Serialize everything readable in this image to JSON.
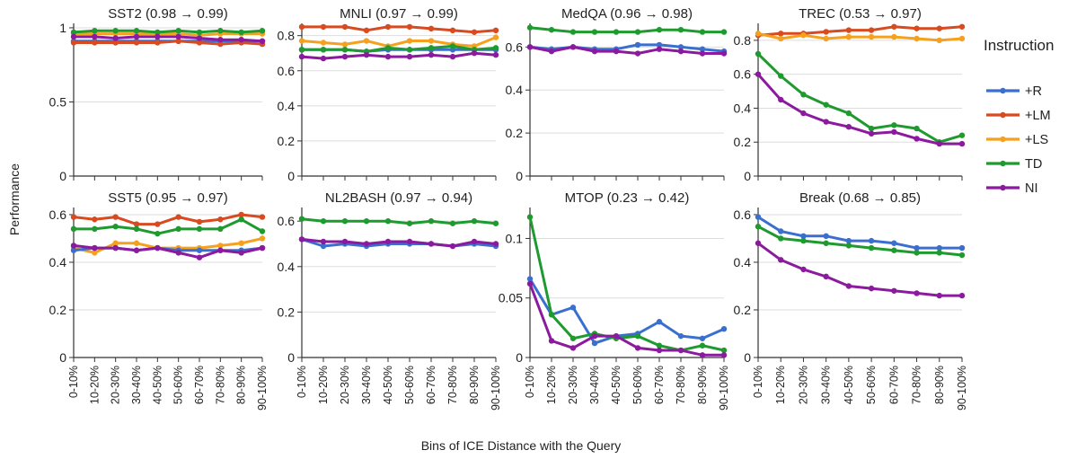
{
  "figure": {
    "ylabel": "Performance",
    "xlabel": "Bins of ICE Distance with the Query"
  },
  "legend": {
    "title": "Instruction",
    "placement": "right",
    "items": [
      {
        "name": "+R",
        "color": "#3a6fcf"
      },
      {
        "name": "+LM",
        "color": "#d84a1f"
      },
      {
        "name": "+LS",
        "color": "#f5a11d"
      },
      {
        "name": "TD",
        "color": "#1e9a2e"
      },
      {
        "name": "NI",
        "color": "#8c1a9e"
      }
    ]
  },
  "chart_data": [
    {
      "type": "line",
      "title": "SST2 (0.98 → 0.99)",
      "categories": [
        "0-10%",
        "10-20%",
        "20-30%",
        "30-40%",
        "40-50%",
        "50-60%",
        "60-70%",
        "70-80%",
        "80-90%",
        "90-100%"
      ],
      "ylim": [
        0,
        1.03
      ],
      "yticks": [
        0,
        0.5,
        1
      ],
      "ytick_labels": [
        "0",
        "0.5",
        "1"
      ],
      "show_xticks": false,
      "grid": true,
      "series": [
        {
          "name": "+R",
          "values": [
            0.91,
            0.91,
            0.91,
            0.91,
            0.91,
            0.91,
            0.91,
            0.91,
            0.91,
            0.91
          ]
        },
        {
          "name": "+LM",
          "values": [
            0.9,
            0.9,
            0.9,
            0.9,
            0.9,
            0.91,
            0.9,
            0.89,
            0.9,
            0.89
          ]
        },
        {
          "name": "+LS",
          "values": [
            0.96,
            0.96,
            0.96,
            0.96,
            0.96,
            0.96,
            0.95,
            0.96,
            0.96,
            0.96
          ]
        },
        {
          "name": "TD",
          "values": [
            0.97,
            0.98,
            0.98,
            0.98,
            0.97,
            0.98,
            0.97,
            0.98,
            0.97,
            0.98
          ]
        },
        {
          "name": "NI",
          "values": [
            0.94,
            0.94,
            0.93,
            0.94,
            0.94,
            0.94,
            0.93,
            0.92,
            0.92,
            0.91
          ]
        }
      ]
    },
    {
      "type": "line",
      "title": "MNLI (0.97 → 0.99)",
      "categories": [
        "0-10%",
        "10-20%",
        "20-30%",
        "30-40%",
        "40-50%",
        "50-60%",
        "60-70%",
        "70-80%",
        "80-90%",
        "90-100%"
      ],
      "ylim": [
        0,
        0.87
      ],
      "yticks": [
        0,
        0.2,
        0.4,
        0.6,
        0.8
      ],
      "ytick_labels": [
        "0",
        "0.2",
        "0.4",
        "0.6",
        "0.8"
      ],
      "show_xticks": false,
      "grid": true,
      "series": [
        {
          "name": "+R",
          "values": [
            0.72,
            0.72,
            0.72,
            0.71,
            0.72,
            0.72,
            0.72,
            0.72,
            0.72,
            0.72
          ]
        },
        {
          "name": "+LM",
          "values": [
            0.85,
            0.85,
            0.85,
            0.83,
            0.85,
            0.85,
            0.84,
            0.83,
            0.82,
            0.83
          ]
        },
        {
          "name": "+LS",
          "values": [
            0.77,
            0.76,
            0.75,
            0.77,
            0.74,
            0.77,
            0.77,
            0.75,
            0.74,
            0.79
          ]
        },
        {
          "name": "TD",
          "values": [
            0.72,
            0.72,
            0.72,
            0.71,
            0.73,
            0.72,
            0.73,
            0.74,
            0.72,
            0.73
          ]
        },
        {
          "name": "NI",
          "values": [
            0.68,
            0.67,
            0.68,
            0.69,
            0.68,
            0.68,
            0.69,
            0.68,
            0.7,
            0.69
          ]
        }
      ]
    },
    {
      "type": "line",
      "title": "MedQA (0.96 → 0.98)",
      "categories": [
        "0-10%",
        "10-20%",
        "20-30%",
        "30-40%",
        "40-50%",
        "50-60%",
        "60-70%",
        "70-80%",
        "80-90%",
        "90-100%"
      ],
      "ylim": [
        0,
        0.71
      ],
      "yticks": [
        0,
        0.2,
        0.4,
        0.6
      ],
      "ytick_labels": [
        "0",
        "0.2",
        "0.4",
        "0.6"
      ],
      "show_xticks": false,
      "grid": true,
      "series": [
        {
          "name": "+R",
          "values": [
            0.6,
            0.59,
            0.6,
            0.59,
            0.59,
            0.61,
            0.61,
            0.6,
            0.59,
            0.58
          ]
        },
        {
          "name": "NI",
          "values": [
            0.6,
            0.58,
            0.6,
            0.58,
            0.58,
            0.57,
            0.59,
            0.58,
            0.57,
            0.57
          ]
        },
        {
          "name": "TD",
          "values": [
            0.69,
            0.68,
            0.67,
            0.67,
            0.67,
            0.67,
            0.68,
            0.68,
            0.67,
            0.67
          ]
        }
      ]
    },
    {
      "type": "line",
      "title": "TREC (0.53 → 0.97)",
      "categories": [
        "0-10%",
        "10-20%",
        "20-30%",
        "30-40%",
        "40-50%",
        "50-60%",
        "60-70%",
        "70-80%",
        "80-90%",
        "90-100%"
      ],
      "ylim": [
        0,
        0.9
      ],
      "yticks": [
        0,
        0.2,
        0.4,
        0.6,
        0.8
      ],
      "ytick_labels": [
        "0",
        "0.2",
        "0.4",
        "0.6",
        "0.8"
      ],
      "show_xticks": false,
      "grid": true,
      "series": [
        {
          "name": "+LM",
          "values": [
            0.83,
            0.84,
            0.84,
            0.85,
            0.86,
            0.86,
            0.88,
            0.87,
            0.87,
            0.88
          ]
        },
        {
          "name": "+LS",
          "values": [
            0.84,
            0.81,
            0.83,
            0.81,
            0.82,
            0.82,
            0.82,
            0.81,
            0.8,
            0.81
          ]
        },
        {
          "name": "TD",
          "values": [
            0.72,
            0.59,
            0.48,
            0.42,
            0.37,
            0.28,
            0.3,
            0.28,
            0.2,
            0.24
          ]
        },
        {
          "name": "NI",
          "values": [
            0.6,
            0.45,
            0.37,
            0.32,
            0.29,
            0.25,
            0.26,
            0.22,
            0.19,
            0.19
          ]
        }
      ]
    },
    {
      "type": "line",
      "title": "SST5 (0.95 → 0.97)",
      "categories": [
        "0-10%",
        "10-20%",
        "20-30%",
        "30-40%",
        "40-50%",
        "50-60%",
        "60-70%",
        "70-80%",
        "80-90%",
        "90-100%"
      ],
      "ylim": [
        0,
        0.63
      ],
      "yticks": [
        0,
        0.2,
        0.4,
        0.6
      ],
      "ytick_labels": [
        "0",
        "0.2",
        "0.4",
        "0.6"
      ],
      "show_xticks": true,
      "grid": true,
      "series": [
        {
          "name": "+LM",
          "values": [
            0.59,
            0.58,
            0.59,
            0.56,
            0.56,
            0.59,
            0.57,
            0.58,
            0.6,
            0.59
          ]
        },
        {
          "name": "TD",
          "values": [
            0.54,
            0.54,
            0.55,
            0.54,
            0.52,
            0.54,
            0.54,
            0.54,
            0.58,
            0.53
          ]
        },
        {
          "name": "+LS",
          "values": [
            0.46,
            0.44,
            0.48,
            0.48,
            0.46,
            0.46,
            0.46,
            0.47,
            0.48,
            0.5
          ]
        },
        {
          "name": "+R",
          "values": [
            0.45,
            0.46,
            0.46,
            0.45,
            0.46,
            0.45,
            0.45,
            0.45,
            0.45,
            0.46
          ]
        },
        {
          "name": "NI",
          "values": [
            0.47,
            0.46,
            0.46,
            0.45,
            0.46,
            0.44,
            0.42,
            0.45,
            0.44,
            0.46
          ]
        }
      ]
    },
    {
      "type": "line",
      "title": "NL2BASH (0.97 → 0.94)",
      "categories": [
        "0-10%",
        "10-20%",
        "20-30%",
        "30-40%",
        "40-50%",
        "50-60%",
        "60-70%",
        "70-80%",
        "80-90%",
        "90-100%"
      ],
      "ylim": [
        0,
        0.66
      ],
      "yticks": [
        0,
        0.2,
        0.4,
        0.6
      ],
      "ytick_labels": [
        "0",
        "0.2",
        "0.4",
        "0.6"
      ],
      "show_xticks": true,
      "grid": true,
      "series": [
        {
          "name": "TD",
          "values": [
            0.61,
            0.6,
            0.6,
            0.6,
            0.6,
            0.59,
            0.6,
            0.59,
            0.6,
            0.59
          ]
        },
        {
          "name": "+R",
          "values": [
            0.52,
            0.49,
            0.5,
            0.49,
            0.5,
            0.5,
            0.5,
            0.49,
            0.5,
            0.49
          ]
        },
        {
          "name": "NI",
          "values": [
            0.52,
            0.51,
            0.51,
            0.5,
            0.51,
            0.51,
            0.5,
            0.49,
            0.51,
            0.5
          ]
        }
      ]
    },
    {
      "type": "line",
      "title": "MTOP (0.23 → 0.42)",
      "categories": [
        "0-10%",
        "10-20%",
        "20-30%",
        "30-40%",
        "40-50%",
        "50-60%",
        "60-70%",
        "70-80%",
        "80-90%",
        "90-100%"
      ],
      "ylim": [
        0,
        0.126
      ],
      "yticks": [
        0,
        0.05,
        0.1
      ],
      "ytick_labels": [
        "0",
        "0.05",
        "0.1"
      ],
      "show_xticks": true,
      "grid": true,
      "series": [
        {
          "name": "+R",
          "values": [
            0.066,
            0.036,
            0.042,
            0.012,
            0.018,
            0.02,
            0.03,
            0.018,
            0.016,
            0.024
          ]
        },
        {
          "name": "TD",
          "values": [
            0.118,
            0.036,
            0.016,
            0.02,
            0.016,
            0.018,
            0.01,
            0.006,
            0.01,
            0.006
          ]
        },
        {
          "name": "NI",
          "values": [
            0.062,
            0.014,
            0.008,
            0.018,
            0.018,
            0.008,
            0.006,
            0.006,
            0.002,
            0.002
          ]
        }
      ]
    },
    {
      "type": "line",
      "title": "Break (0.68 → 0.85)",
      "categories": [
        "0-10%",
        "10-20%",
        "20-30%",
        "30-40%",
        "40-50%",
        "50-60%",
        "60-70%",
        "70-80%",
        "80-90%",
        "90-100%"
      ],
      "ylim": [
        0,
        0.63
      ],
      "yticks": [
        0,
        0.2,
        0.4,
        0.6
      ],
      "ytick_labels": [
        "0",
        "0.2",
        "0.4",
        "0.6"
      ],
      "show_xticks": true,
      "grid": true,
      "series": [
        {
          "name": "+R",
          "values": [
            0.59,
            0.53,
            0.51,
            0.51,
            0.49,
            0.49,
            0.48,
            0.46,
            0.46,
            0.46
          ]
        },
        {
          "name": "TD",
          "values": [
            0.55,
            0.5,
            0.49,
            0.48,
            0.47,
            0.46,
            0.45,
            0.44,
            0.44,
            0.43
          ]
        },
        {
          "name": "NI",
          "values": [
            0.48,
            0.41,
            0.37,
            0.34,
            0.3,
            0.29,
            0.28,
            0.27,
            0.26,
            0.26
          ]
        }
      ]
    }
  ]
}
